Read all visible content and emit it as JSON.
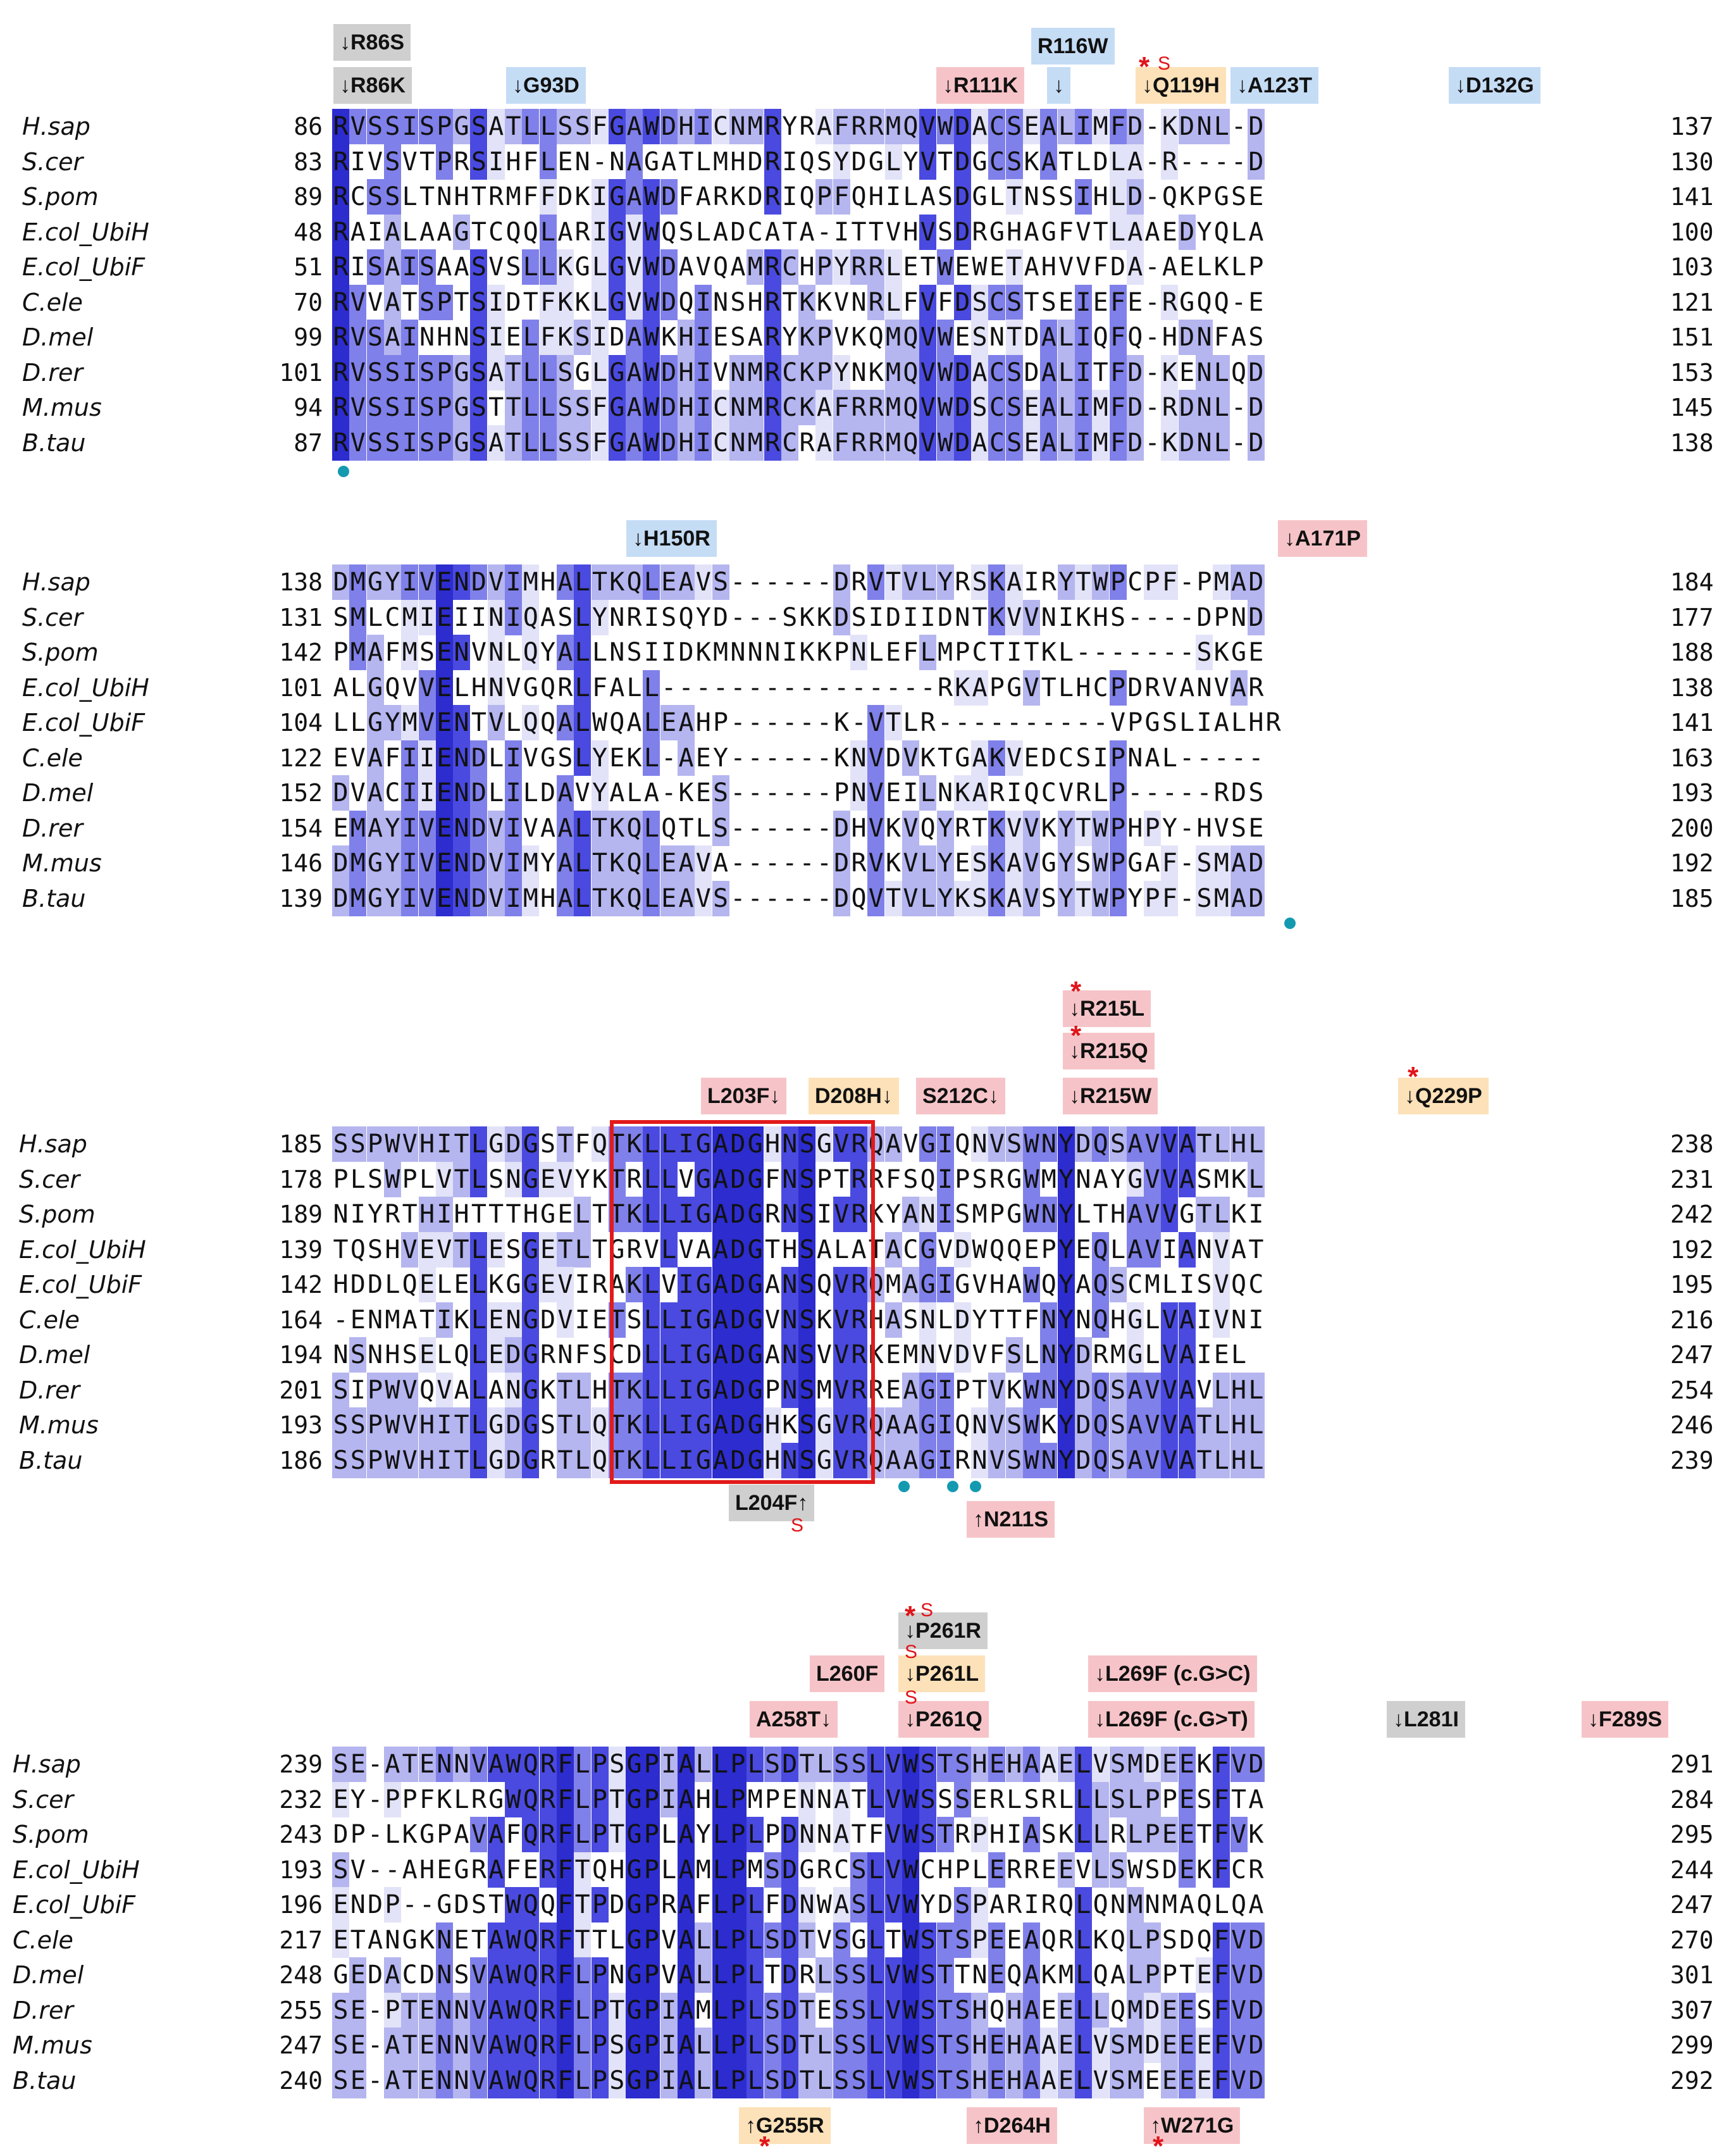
{
  "species": [
    "H.sap",
    "S.cer",
    "S.pom",
    "E.col_UbiH",
    "E.col_UbiF",
    "C.ele",
    "D.mel",
    "D.rer",
    "M.mus",
    "B.tau"
  ],
  "colors": {
    "level1": "#e2e2f8",
    "level2": "#b5b5f0",
    "level3": "#8080ea",
    "level4": "#4a4ae0",
    "level5": "#2c2ccf",
    "label_pink": "#f6c4c8",
    "label_blue": "#c5dcf5",
    "label_grey": "#cfcfcf",
    "label_yellow": "#fde1b8",
    "box_red": "#e21a1a",
    "marker_teal": "#139ab0",
    "star_red": "#e0141a"
  },
  "blocks": [
    {
      "id": "block1",
      "sequences": [
        {
          "start": "86",
          "seq": "RVSSISPGSATLLSSFGAWDHICNMRYRAFRRMQVWDACSEALIMFD-KDNL-D",
          "end": "137"
        },
        {
          "start": "83",
          "seq": "RIVSVTPRSIHFLEN-NAGATLMHDRIQSYDGLYVTDGCSKATLDLA-R----D",
          "end": "130"
        },
        {
          "start": "89",
          "seq": "RCSSLTNHTRMFFDKIGAWDFARKDRIQPFQHILASDGLTNSSIHLD-QKPGSE",
          "end": "141"
        },
        {
          "start": "48",
          "seq": "RAIALAAGTCQQLARIGVWQSLADCATA-ITTVHVSDRGHAGFVTLAAEDYQLA",
          "end": "100"
        },
        {
          "start": "51",
          "seq": "RISAISAASVSLLKGLGVWDAVQAMRCHPYRRLETWEWETAHVVFDA-AELKLP",
          "end": "103"
        },
        {
          "start": "70",
          "seq": "RVVATSPTSIDTFKKLGVWDQINSHRTKKVNRLFVFDSCSTSEIEFE-RGQQ-E",
          "end": "121"
        },
        {
          "start": "99",
          "seq": "RVSAINHNSIELFKSIDAWKHIESARYKPVKQMQVWESNTDALIQFQ-HDNFAS",
          "end": "151"
        },
        {
          "start": "101",
          "seq": "RVSSISPGSATLLSGLGAWDHIVNMRCKPYNKMQVWDACSDALITFD-KENLQD",
          "end": "153"
        },
        {
          "start": "94",
          "seq": "RVSSISPGSTTLLSSFGAWDHICNMRCKAFRRMQVWDSCSEALIMFD-RDNL-D",
          "end": "145"
        },
        {
          "start": "87",
          "seq": "RVSSISPGSATLLSSFGAWDHICNMRCRAFRRMQVWDACSEALIMFD-KDNL-D",
          "end": "138"
        }
      ],
      "labels": [
        {
          "text": "↓R86S",
          "style": "grey"
        },
        {
          "text": "↓R86K",
          "style": "grey"
        },
        {
          "text": "↓G93D",
          "style": "blue"
        },
        {
          "text": "R116W",
          "style": "blue"
        },
        {
          "text": "↓",
          "style": "blue"
        },
        {
          "text": "↓R111K",
          "style": "pink"
        },
        {
          "text": "↓Q119H",
          "style": "yellow"
        },
        {
          "text": "↓A123T",
          "style": "blue"
        },
        {
          "text": "↓D132G",
          "style": "blue"
        }
      ]
    },
    {
      "id": "block2",
      "sequences": [
        {
          "start": "138",
          "seq": "DMGYIVENDVIMHALTKQLEAVS------DRVTVLYRSKAIRYTWPCPF-PMAD",
          "end": "184"
        },
        {
          "start": "131",
          "seq": "SMLCMIEIINIQASLYNRISQYD---SKKDSIDIIDNTKVVNIKHS----DPND",
          "end": "177"
        },
        {
          "start": "142",
          "seq": "PMAFMSENVNLQYALLNSIIDKMNNNIKKPNLEFLMPCTITKL-------SKGE",
          "end": "188"
        },
        {
          "start": "101",
          "seq": "ALGQVVELHNVGQRLFALL----------------RKAPGVTLHCPDRVANVAR",
          "end": "138"
        },
        {
          "start": "104",
          "seq": "LLGYMVENTVLQQALWQALEAHP------K-VTLR----------VPGSLIALHR",
          "end": "141"
        },
        {
          "start": "122",
          "seq": "EVAFIIENDLIVGSLYEKL-AEY------KNVDVKTGAKVEDCSIPNAL-----",
          "end": "163"
        },
        {
          "start": "152",
          "seq": "DVACIIENDLILDAVYALA-KES------PNVEILNKARIQCVRLP-----RDS",
          "end": "193"
        },
        {
          "start": "154",
          "seq": "EMAYIVENDVIVAALTKQLQTLS------DHVKVQYRTKVVKYTWPHPY-HVSE",
          "end": "200"
        },
        {
          "start": "146",
          "seq": "DMGYIVENDVIMYALTKQLEAVA------DRVKVLYESKAVGYSWPGAF-SMAD",
          "end": "192"
        },
        {
          "start": "139",
          "seq": "DMGYIVENDVIMHALTKQLEAVS------DQVTVLYKSKAVSYTWPYPF-SMAD",
          "end": "185"
        }
      ],
      "labels": [
        {
          "text": "↓H150R",
          "style": "blue"
        },
        {
          "text": "↓A171P",
          "style": "pink"
        }
      ]
    },
    {
      "id": "block3",
      "sequences": [
        {
          "start": "185",
          "seq": "SSPWVHITLGDGSTFQTKLLIGADGHNSGVRQAVGIQNVSWNYDQSAVVATLHL",
          "end": "238"
        },
        {
          "start": "178",
          "seq": "PLSWPLVTLSNGEVYKTRLLVGADGFNSPTRRFSQIPSRGWMYNAYGVVASMKL",
          "end": "231"
        },
        {
          "start": "189",
          "seq": "NIYRTHIHTTTHGELTTKLLIGADGRNSIVRKYANISMPGWNYLTHAVVGTLKI",
          "end": "242"
        },
        {
          "start": "139",
          "seq": "TQSHVEVTLESGETLTGRVLVAADGTHSALATACGVDWQQEPYEQLAVIANVAT",
          "end": "192"
        },
        {
          "start": "142",
          "seq": "HDDLQELELKGGEVIRAKLVIGADGANSQVRQMAGIGVHAWQYAQSCMLISVQC",
          "end": "195"
        },
        {
          "start": "164",
          "seq": "-ENMATIKLENGDVIETSLLIGADGVNSKVRHASNLDYTTFNYNQHGLVAIVNI",
          "end": "216"
        },
        {
          "start": "194",
          "seq": "NSNHSELQLEDGRNFSCDLLIGADGANSVVRKEMNVDVFSLNYDRMGLVAIEL",
          "end": "247"
        },
        {
          "start": "201",
          "seq": "SIPWVQVALANGKTLHTKLLIGADGPNSMVRREAGIPTVKWNYDQSAVVAVLHL",
          "end": "254"
        },
        {
          "start": "193",
          "seq": "SSPWVHITLGDGSTLQTKLLIGADGHKSGVRQAAGIQNVSWKYDQSAVVATLHL",
          "end": "246"
        },
        {
          "start": "186",
          "seq": "SSPWVHITLGDGRTLQTKLLIGADGHNSGVRQAAGIRNVSWNYDQSAVVATLHL",
          "end": "239"
        }
      ],
      "labels": [
        {
          "text": "↓R215L",
          "style": "pink"
        },
        {
          "text": "↓R215Q",
          "style": "pink"
        },
        {
          "text": "L203F↓",
          "style": "pink"
        },
        {
          "text": "D208H↓",
          "style": "yellow"
        },
        {
          "text": "S212C↓",
          "style": "pink"
        },
        {
          "text": "↓R215W",
          "style": "pink"
        },
        {
          "text": "↓Q229P",
          "style": "yellow"
        },
        {
          "text": "L204F↑",
          "style": "grey"
        },
        {
          "text": "↑N211S",
          "style": "pink"
        }
      ]
    },
    {
      "id": "block4",
      "sequences": [
        {
          "start": "239",
          "seq": "SE-ATENNVAWQRFLPSGPIALLPLSDTLSSLVWSTSHEHAAELVSMDEEKFVD",
          "end": "291"
        },
        {
          "start": "232",
          "seq": "EY-PPFKLRGWQRFLPTGPIAHLPMPENNATLVWSSSERLSRLLLSLPPESFTA",
          "end": "284"
        },
        {
          "start": "243",
          "seq": "DP-LKGPAVAFQRFLPTGPLAYLPLPDNNATFVWSTRPHIASKLLRLPEETFVK",
          "end": "295"
        },
        {
          "start": "193",
          "seq": "SV--AHEGRAFERFTQHGPLAMLPMSDGRCSLVWCHPLERREEVLSWSDEKFCR",
          "end": "244"
        },
        {
          "start": "196",
          "seq": "ENDP--GDSTWQQFTPDGPRAFLPLFDNWASLVWYDSPARIRQLQNMNMAQLQA",
          "end": "247"
        },
        {
          "start": "217",
          "seq": "ETANGKNETAWQRFTTLGPVALLPLSDTVSGLTWSTSPEEAQRLKQLPSDQFVD",
          "end": "270"
        },
        {
          "start": "248",
          "seq": "GEDACDNSVAWQRFLPNGPVALLPLTDRLSSLVWSTTNEQAKMLQALPPTEFVD",
          "end": "301"
        },
        {
          "start": "255",
          "seq": "SE-PTENNVAWQRFLPTGPIAMLPLSDTESSLVWSTSHQHAEELLQMDEESFVD",
          "end": "307"
        },
        {
          "start": "247",
          "seq": "SE-ATENNVAWQRFLPSGPIALLPLSDTLSSLVWSTSHEHAAELVSMDEEEFVD",
          "end": "299"
        },
        {
          "start": "240",
          "seq": "SE-ATENNVAWQRFLPSGPIALLPLSDTLSSLVWSTSHEHAAELVSMEEEEFVD",
          "end": "292"
        }
      ],
      "labels": [
        {
          "text": "↓P261R",
          "style": "grey"
        },
        {
          "text": "L260F",
          "style": "pink"
        },
        {
          "text": "↓P261L",
          "style": "yellow"
        },
        {
          "text": "↓L269F (c.G>C)",
          "style": "pink"
        },
        {
          "text": "A258T↓",
          "style": "pink"
        },
        {
          "text": "↓P261Q",
          "style": "pink"
        },
        {
          "text": "↓L269F (c.G>T)",
          "style": "pink"
        },
        {
          "text": "↓L281I",
          "style": "grey"
        },
        {
          "text": "↓F289S",
          "style": "pink"
        },
        {
          "text": "↑G255R",
          "style": "yellow"
        },
        {
          "text": "↑D264H",
          "style": "pink"
        },
        {
          "text": "↑W271G",
          "style": "pink"
        }
      ]
    }
  ],
  "annotation_marks": {
    "star": "*",
    "s_flag": "S"
  }
}
